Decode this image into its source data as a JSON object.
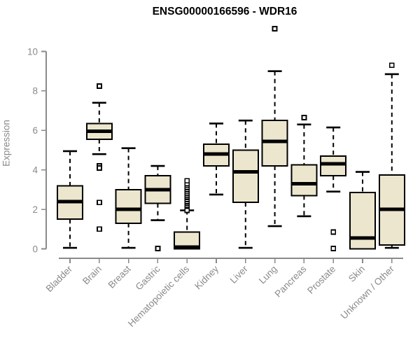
{
  "title": "ENSG00000166596 - WDR16",
  "chart_data": {
    "type": "boxplot",
    "title": "ENSG00000166596 - WDR16",
    "xlabel": "",
    "ylabel": "Expression",
    "ylim": [
      0,
      10
    ],
    "yticks": [
      0,
      2,
      4,
      6,
      8,
      10
    ],
    "grid": false,
    "legend": "none",
    "categories": [
      "Bladder",
      "Brain",
      "Breast",
      "Gastric",
      "Hematopoietic cells",
      "Kidney",
      "Liver",
      "Lung",
      "Pancreas",
      "Prostate",
      "Skin",
      "Unknown / Other"
    ],
    "boxes": [
      {
        "category": "Bladder",
        "whisker_low": 0.05,
        "q1": 1.5,
        "median": 2.4,
        "q3": 3.2,
        "whisker_high": 4.95,
        "outliers": []
      },
      {
        "category": "Brain",
        "whisker_low": 4.8,
        "q1": 5.55,
        "median": 5.95,
        "q3": 6.35,
        "whisker_high": 7.4,
        "outliers": [
          8.25,
          4.2,
          4.1,
          2.35,
          1.0
        ]
      },
      {
        "category": "Breast",
        "whisker_low": 0.05,
        "q1": 1.3,
        "median": 2.0,
        "q3": 3.0,
        "whisker_high": 5.1,
        "outliers": []
      },
      {
        "category": "Gastric",
        "whisker_low": 1.45,
        "q1": 2.3,
        "median": 3.0,
        "q3": 3.7,
        "whisker_high": 4.2,
        "outliers": [
          0.02
        ]
      },
      {
        "category": "Hematopoietic cells",
        "whisker_low": 0.0,
        "q1": 0.0,
        "median": 0.08,
        "q3": 0.85,
        "whisker_high": 1.95,
        "outliers": [
          1.95,
          2.2,
          2.3,
          2.4,
          2.5,
          2.6,
          2.7,
          2.8,
          2.9,
          3.0,
          3.1,
          3.2,
          3.3,
          3.45
        ]
      },
      {
        "category": "Kidney",
        "whisker_low": 2.75,
        "q1": 4.2,
        "median": 4.8,
        "q3": 5.3,
        "whisker_high": 6.35,
        "outliers": []
      },
      {
        "category": "Liver",
        "whisker_low": 0.05,
        "q1": 2.35,
        "median": 3.9,
        "q3": 5.0,
        "whisker_high": 6.5,
        "outliers": []
      },
      {
        "category": "Lung",
        "whisker_low": 1.15,
        "q1": 4.2,
        "median": 5.45,
        "q3": 6.5,
        "whisker_high": 9.0,
        "outliers": [
          11.15
        ]
      },
      {
        "category": "Pancreas",
        "whisker_low": 1.65,
        "q1": 2.7,
        "median": 3.3,
        "q3": 4.25,
        "whisker_high": 6.3,
        "outliers": [
          6.65
        ]
      },
      {
        "category": "Prostate",
        "whisker_low": 2.9,
        "q1": 3.7,
        "median": 4.3,
        "q3": 4.7,
        "whisker_high": 6.15,
        "outliers": [
          0.85,
          0.02
        ]
      },
      {
        "category": "Skin",
        "whisker_low": 0.0,
        "q1": 0.0,
        "median": 0.55,
        "q3": 2.85,
        "whisker_high": 3.9,
        "outliers": []
      },
      {
        "category": "Unknown / Other",
        "whisker_low": 0.05,
        "q1": 0.2,
        "median": 2.0,
        "q3": 3.75,
        "whisker_high": 8.85,
        "outliers": [
          9.3
        ]
      }
    ]
  },
  "colors": {
    "background": "#ffffff",
    "box_fill": "#ebe6cd",
    "box_border": "#000000",
    "median": "#000000",
    "whisker": "#000000",
    "outlier": "#000000",
    "axis": "#8a8a8a",
    "tick_label": "#8a8a8a",
    "title": "#000000"
  }
}
